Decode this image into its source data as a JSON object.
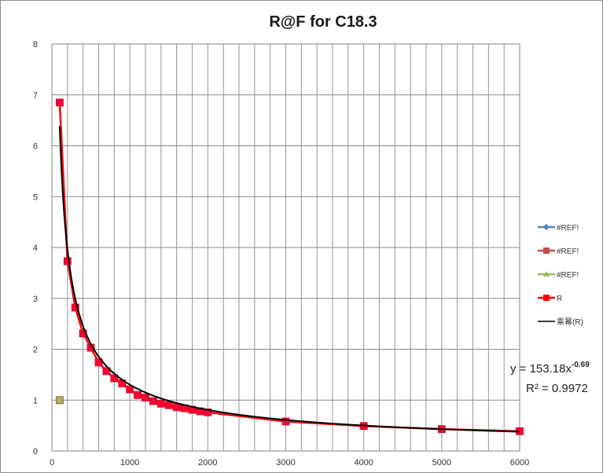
{
  "chart_data": {
    "type": "scatter",
    "title": "R@F  for C18.3",
    "xlabel": "",
    "ylabel": "",
    "xlim": [
      0,
      6000
    ],
    "ylim": [
      0,
      8
    ],
    "x_ticks": [
      "0",
      "1000",
      "2000",
      "3000",
      "4000",
      "5000",
      "6000"
    ],
    "y_ticks": [
      "0",
      "1",
      "2",
      "3",
      "4",
      "5",
      "6",
      "7",
      "8"
    ],
    "grid": true,
    "legend_position": "right",
    "legend": [
      {
        "label": "#REF!",
        "color": "#4f81bd",
        "marker": "diamond"
      },
      {
        "label": "#REF!",
        "color": "#c0504d",
        "marker": "square"
      },
      {
        "label": "#REF!",
        "color": "#9bbb59",
        "marker": "triangle"
      },
      {
        "label": "R",
        "color": "#ff0000",
        "marker": "square"
      },
      {
        "label": "乘幂(R)",
        "color": "#000000",
        "marker": "line"
      }
    ],
    "series": [
      {
        "name": "#REF!",
        "color": "#4f81bd",
        "x": [
          100
        ],
        "y": [
          1.0
        ]
      },
      {
        "name": "#REF!",
        "color": "#c0504d",
        "x": [
          100
        ],
        "y": [
          1.0
        ]
      },
      {
        "name": "#REF!",
        "color": "#9bbb59",
        "x": [
          100
        ],
        "y": [
          1.0
        ]
      },
      {
        "name": "R",
        "color": "#ff0000",
        "x": [
          100,
          200,
          300,
          400,
          500,
          600,
          700,
          800,
          900,
          1000,
          1100,
          1200,
          1300,
          1400,
          1500,
          1600,
          1700,
          1800,
          1900,
          2000,
          3000,
          4000,
          5000,
          6000
        ],
        "y": [
          6.85,
          3.73,
          2.82,
          2.31,
          2.03,
          1.74,
          1.57,
          1.43,
          1.33,
          1.21,
          1.1,
          1.05,
          0.98,
          0.93,
          0.9,
          0.86,
          0.84,
          0.81,
          0.78,
          0.76,
          0.58,
          0.49,
          0.43,
          0.39
        ]
      }
    ],
    "trendline": {
      "type": "power",
      "name": "乘幂(R)",
      "a": 153.18,
      "b": -0.69,
      "equation_prefix": "y = 153.18x",
      "equation_exponent": "-0.69",
      "r2_text": "R² = 0.9972"
    }
  }
}
